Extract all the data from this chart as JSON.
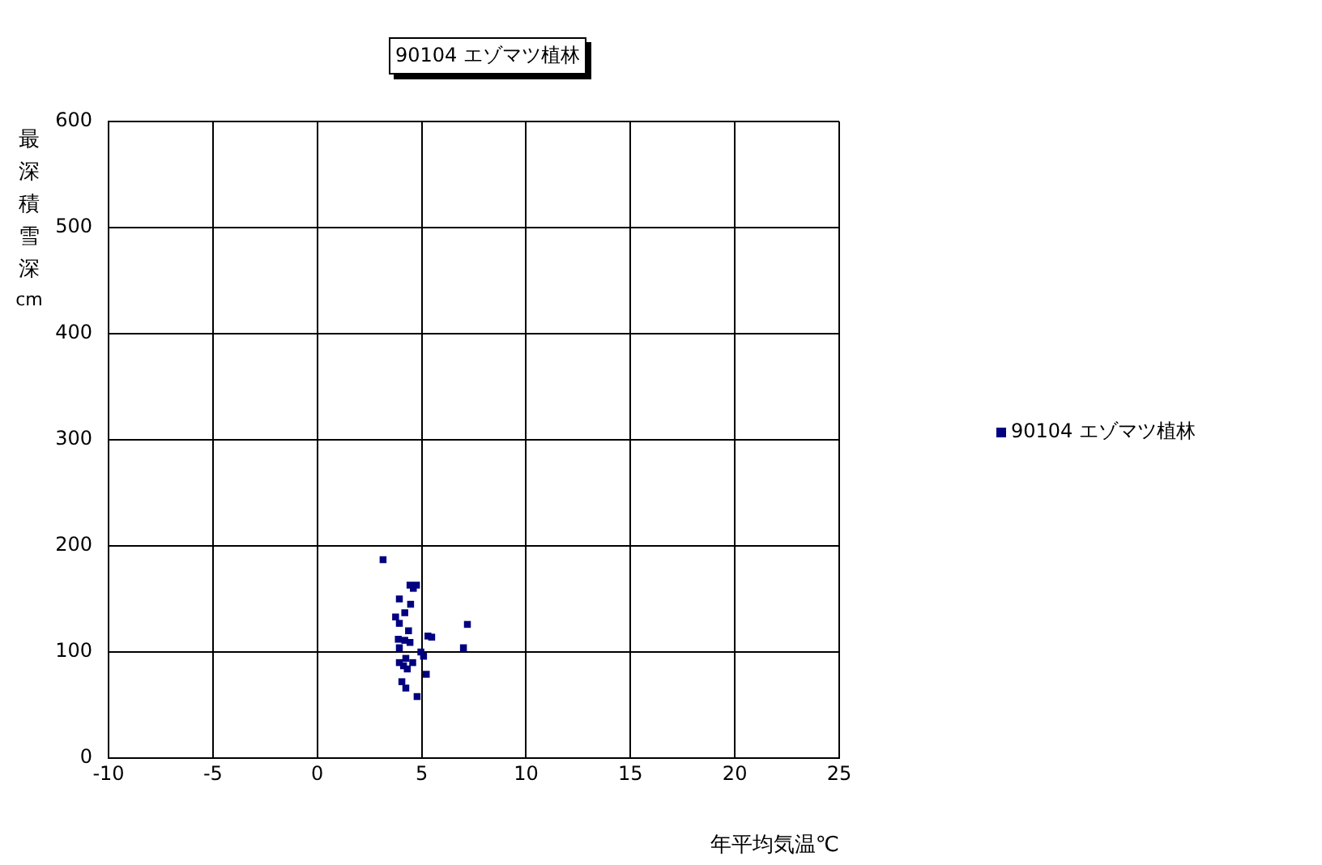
{
  "chart_data": {
    "type": "scatter",
    "title": "90104 エゾマツ植林",
    "xlabel": "年平均気温℃",
    "ylabel": "最深積雪深cm",
    "series": [
      {
        "name": "90104 エゾマツ植林",
        "color": "#000080",
        "x": [
          3.15,
          4.75,
          4.6,
          3.93,
          4.47,
          4.19,
          3.75,
          3.93,
          4.37,
          7.19,
          5.3,
          5.48,
          3.88,
          4.19,
          4.44,
          3.93,
          7.0,
          4.96,
          5.09,
          3.93,
          4.57,
          4.13,
          4.31,
          5.22,
          4.05,
          4.24,
          4.78,
          4.24,
          4.44
        ],
        "values": [
          187,
          163,
          160,
          150,
          145,
          137,
          133,
          127,
          120,
          126,
          115,
          114,
          112,
          111,
          109,
          104,
          104,
          100,
          96,
          90,
          90,
          87,
          84,
          79,
          72,
          66,
          58,
          94,
          163
        ]
      }
    ],
    "xlim": [
      -10,
      25
    ],
    "xticks": [
      -10,
      -5,
      0,
      5,
      10,
      15,
      20,
      25
    ],
    "ylim": [
      0,
      600
    ],
    "yticks": [
      0,
      100,
      200,
      300,
      400,
      500,
      600
    ],
    "grid": true,
    "legend": "right",
    "marker": "square"
  }
}
